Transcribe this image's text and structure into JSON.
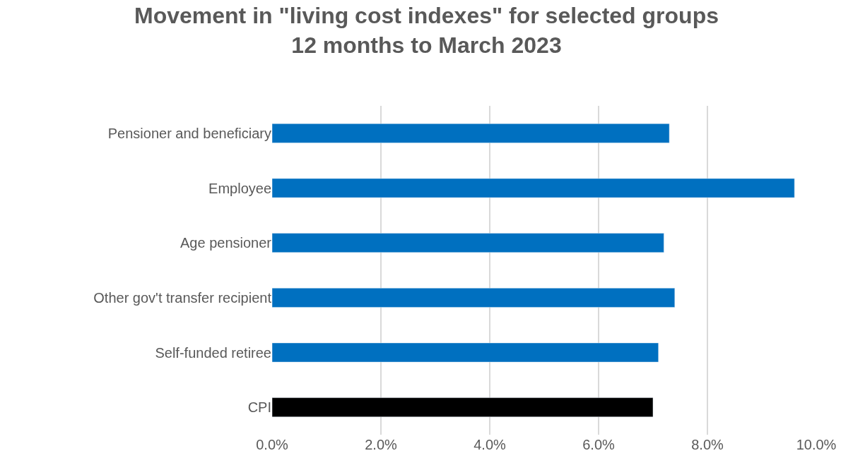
{
  "chart_data": {
    "type": "bar",
    "orientation": "horizontal",
    "title": "Movement in \"living cost indexes\" for selected groups\n12 months to March 2023",
    "categories": [
      "Pensioner and beneficiary",
      "Employee",
      "Age pensioner",
      "Other gov't transfer recipient",
      "Self-funded retiree",
      "CPI"
    ],
    "values": [
      7.3,
      9.6,
      7.2,
      7.4,
      7.1,
      7.0
    ],
    "colors": [
      "#0070c0",
      "#0070c0",
      "#0070c0",
      "#0070c0",
      "#0070c0",
      "#000000"
    ],
    "xlim": [
      0,
      10
    ],
    "xticks": [
      {
        "value": 0,
        "label": "0.0%"
      },
      {
        "value": 2,
        "label": "2.0%"
      },
      {
        "value": 4,
        "label": "4.0%"
      },
      {
        "value": 6,
        "label": "6.0%"
      },
      {
        "value": 8,
        "label": "8.0%"
      },
      {
        "value": 10,
        "label": "10.0%"
      }
    ],
    "grid": "x",
    "legend": false
  }
}
